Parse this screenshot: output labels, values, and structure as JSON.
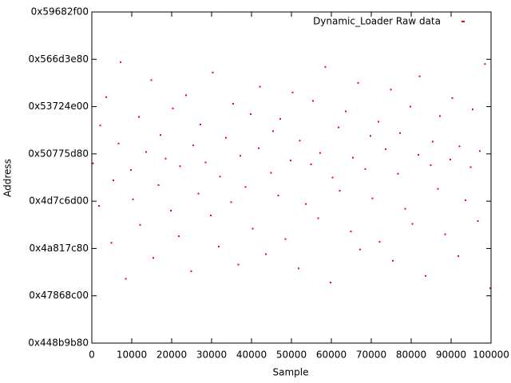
{
  "chart_data": {
    "type": "scatter",
    "xlabel": "Sample",
    "ylabel": "Address",
    "xlim": [
      0,
      100000
    ],
    "xticks": [
      0,
      10000,
      20000,
      30000,
      40000,
      50000,
      60000,
      70000,
      80000,
      90000,
      100000
    ],
    "ylim": [
      1150000000,
      1500000000
    ],
    "yticks": [
      {
        "value": 1150000000,
        "label": "0x448b9b80"
      },
      {
        "value": 1200000000,
        "label": "0x47868c00"
      },
      {
        "value": 1250000000,
        "label": "0x4a817c80"
      },
      {
        "value": 1300000000,
        "label": "0x4d7c6d00"
      },
      {
        "value": 1350000000,
        "label": "0x50775d80"
      },
      {
        "value": 1400000000,
        "label": "0x53724e00"
      },
      {
        "value": 1450000000,
        "label": "0x566d3e80"
      },
      {
        "value": 1500000000,
        "label": "0x59682f00"
      }
    ],
    "legend": "top-right",
    "x": [
      300,
      1800,
      2100,
      3600,
      4900,
      5400,
      6700,
      7200,
      8500,
      9800,
      10300,
      11800,
      12100,
      13600,
      14900,
      15400,
      16700,
      17200,
      18500,
      19800,
      20300,
      21800,
      22100,
      23600,
      24900,
      25400,
      26700,
      27200,
      28500,
      29800,
      30300,
      31800,
      32100,
      33600,
      34900,
      35400,
      36700,
      37200,
      38500,
      39800,
      40300,
      41800,
      42100,
      43600,
      44900,
      45400,
      46700,
      47200,
      48500,
      49800,
      50300,
      51800,
      52100,
      53600,
      54900,
      55400,
      56700,
      57200,
      58500,
      59800,
      60300,
      61800,
      62100,
      63600,
      64900,
      65400,
      66700,
      67200,
      68500,
      69800,
      70300,
      71800,
      72100,
      73600,
      74900,
      75400,
      76700,
      77200,
      78500,
      79800,
      80300,
      81800,
      82100,
      83600,
      84900,
      85400,
      86700,
      87200,
      88500,
      89800,
      90300,
      91800,
      92100,
      93600,
      94900,
      95400,
      96700,
      97200,
      98500,
      99800
    ],
    "series": [
      {
        "name": "Dynamic_Loader Raw data",
        "color": "#ff0000",
        "values": [
          1340000000,
          1295000000,
          1380000000,
          1410000000,
          1256000000,
          1322000000,
          1361000000,
          1447000000,
          1218000000,
          1333000000,
          1302000000,
          1389000000,
          1275000000,
          1352000000,
          1428000000,
          1240000000,
          1317000000,
          1370000000,
          1345000000,
          1290000000,
          1398000000,
          1263000000,
          1337000000,
          1412000000,
          1226000000,
          1359000000,
          1308000000,
          1381000000,
          1341000000,
          1285000000,
          1436000000,
          1252000000,
          1326000000,
          1367000000,
          1299000000,
          1403000000,
          1233000000,
          1348000000,
          1315000000,
          1392000000,
          1271000000,
          1356000000,
          1421000000,
          1244000000,
          1330000000,
          1374000000,
          1306000000,
          1387000000,
          1260000000,
          1343000000,
          1415000000,
          1229000000,
          1364000000,
          1297000000,
          1339000000,
          1406000000,
          1282000000,
          1351000000,
          1442000000,
          1214000000,
          1325000000,
          1378000000,
          1311000000,
          1395000000,
          1268000000,
          1346000000,
          1425000000,
          1249000000,
          1334000000,
          1369000000,
          1303000000,
          1384000000,
          1257000000,
          1355000000,
          1418000000,
          1237000000,
          1329000000,
          1372000000,
          1292000000,
          1400000000,
          1276000000,
          1349000000,
          1432000000,
          1221000000,
          1338000000,
          1363000000,
          1313000000,
          1390000000,
          1265000000,
          1344000000,
          1409000000,
          1242000000,
          1358000000,
          1301000000,
          1336000000,
          1397000000,
          1279000000,
          1353000000,
          1445000000,
          1208000000
        ]
      }
    ]
  }
}
